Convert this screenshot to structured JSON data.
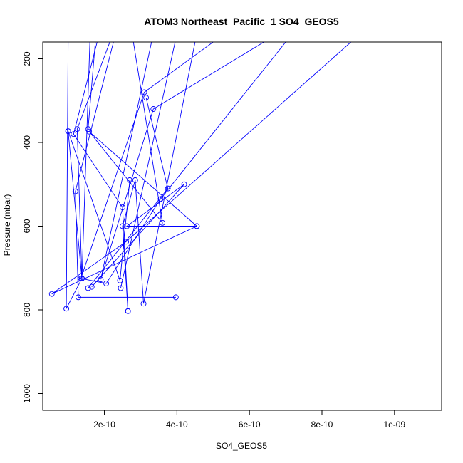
{
  "chart_data": {
    "type": "line",
    "title": "ATOM3 Northeast_Pacific_1 SO4_GEOS5",
    "xlabel": "SO4_GEOS5",
    "ylabel": "Pressure (mbar)",
    "xlim": [
      3e-11,
      1.13e-09
    ],
    "ylim": [
      1040,
      160
    ],
    "y_reversed": true,
    "grid": false,
    "x_ticks": [
      2e-10,
      4e-10,
      6e-10,
      8e-10,
      1e-09
    ],
    "x_tick_labels": [
      "2e-10",
      "4e-10",
      "6e-10",
      "8e-10",
      "1e-09"
    ],
    "y_ticks": [
      200,
      400,
      600,
      800,
      1000
    ],
    "y_tick_labels": [
      "200",
      "400",
      "600",
      "800",
      "1000"
    ],
    "color": "#0000ff",
    "series": [
      {
        "values": [
          {
            "x": 1e-10,
            "y": 160
          },
          {
            "x": 9.5e-11,
            "y": 797
          },
          {
            "x": 1.38e-10,
            "y": 725
          },
          {
            "x": 1.6e-10,
            "y": 160
          }
        ]
      },
      {
        "values": [
          {
            "x": 1.75e-10,
            "y": 160
          },
          {
            "x": 1.55e-10,
            "y": 368
          }
        ]
      },
      {
        "values": [
          {
            "x": 2.15e-10,
            "y": 160
          },
          {
            "x": 1.25e-10,
            "y": 368
          },
          {
            "x": 1.38e-10,
            "y": 725
          },
          {
            "x": 1e-10,
            "y": 373
          }
        ]
      },
      {
        "values": [
          {
            "x": 1e-10,
            "y": 373
          },
          {
            "x": 2.43e-10,
            "y": 730
          },
          {
            "x": 2.7e-10,
            "y": 490
          }
        ]
      },
      {
        "values": [
          {
            "x": 1.8e-10,
            "y": 160
          },
          {
            "x": 1.15e-10,
            "y": 380
          },
          {
            "x": 2.5e-10,
            "y": 555
          },
          {
            "x": 2.65e-10,
            "y": 803
          }
        ]
      },
      {
        "values": [
          {
            "x": 2.25e-10,
            "y": 160
          },
          {
            "x": 1.2e-10,
            "y": 517
          },
          {
            "x": 1.28e-10,
            "y": 770
          },
          {
            "x": 3.97e-10,
            "y": 770
          }
        ]
      },
      {
        "values": [
          {
            "x": 2.8e-10,
            "y": 160
          },
          {
            "x": 3.6e-10,
            "y": 592
          },
          {
            "x": 1.58e-10,
            "y": 374
          },
          {
            "x": 4.55e-10,
            "y": 600
          }
        ]
      },
      {
        "values": [
          {
            "x": 3.3e-10,
            "y": 160
          },
          {
            "x": 1.9e-10,
            "y": 727
          },
          {
            "x": 3.35e-10,
            "y": 320
          },
          {
            "x": 6.4e-10,
            "y": 160
          }
        ]
      },
      {
        "values": [
          {
            "x": 3.95e-10,
            "y": 160
          },
          {
            "x": 2.45e-10,
            "y": 748
          },
          {
            "x": 1.55e-10,
            "y": 748
          },
          {
            "x": 3.75e-10,
            "y": 510
          },
          {
            "x": 3.15e-10,
            "y": 293
          }
        ]
      },
      {
        "values": [
          {
            "x": 5e-10,
            "y": 160
          },
          {
            "x": 3.1e-10,
            "y": 280
          },
          {
            "x": 1.35e-10,
            "y": 725
          },
          {
            "x": 2.05e-10,
            "y": 737
          },
          {
            "x": 3.55e-10,
            "y": 535
          },
          {
            "x": 7e-10,
            "y": 160
          }
        ]
      },
      {
        "values": [
          {
            "x": 4.5e-10,
            "y": 160
          },
          {
            "x": 3.08e-10,
            "y": 785
          },
          {
            "x": 2.85e-10,
            "y": 490
          },
          {
            "x": 2.5e-10,
            "y": 600
          },
          {
            "x": 2.65e-10,
            "y": 803
          }
        ]
      },
      {
        "values": [
          {
            "x": 8.8e-10,
            "y": 160
          },
          {
            "x": 2.6e-10,
            "y": 637
          },
          {
            "x": 5.5e-11,
            "y": 762
          },
          {
            "x": 4.55e-10,
            "y": 600
          },
          {
            "x": 2.62e-10,
            "y": 600
          },
          {
            "x": 4.2e-10,
            "y": 500
          },
          {
            "x": 1.65e-10,
            "y": 745
          }
        ]
      }
    ]
  }
}
